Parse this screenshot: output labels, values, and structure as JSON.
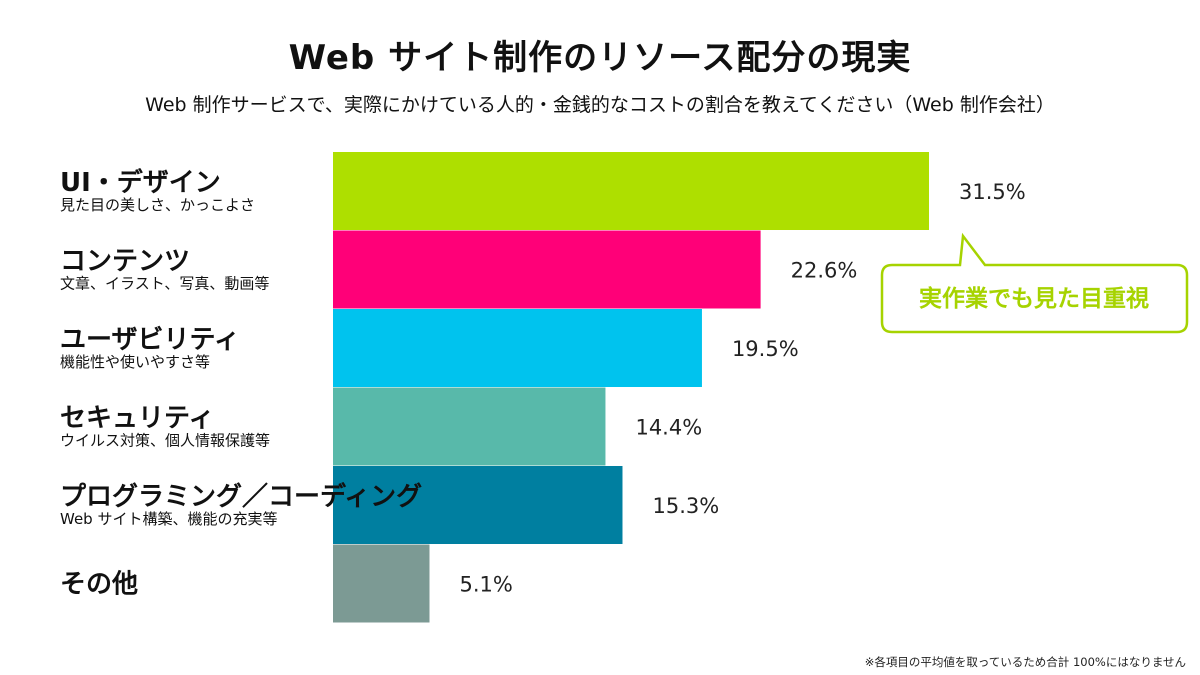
{
  "header": {
    "title": "Web サイト制作のリソース配分の現実",
    "subtitle": "Web 制作サービスで、実際にかけている人的・金銭的なコストの割合を教えてください（Web 制作会社）"
  },
  "callout": {
    "text": "実作業でも見た目重視"
  },
  "footnote": "※各項目の平均値を取っているため合計 100%にはなりません",
  "chart_data": {
    "type": "bar",
    "orientation": "horizontal",
    "title": "Web サイト制作のリソース配分の現実",
    "subtitle": "Web 制作サービスで、実際にかけている人的・金銭的なコストの割合を教えてください（Web 制作会社）",
    "categories": [
      {
        "name": "UI・デザイン",
        "description": "見た目の美しさ、かっこよさ",
        "value": 31.5,
        "label": "31.5%",
        "color": "#aedf00"
      },
      {
        "name": "コンテンツ",
        "description": "文章、イラスト、写真、動画等",
        "value": 22.6,
        "label": "22.6%",
        "color": "#ff0078"
      },
      {
        "name": "ユーザビリティ",
        "description": "機能性や使いやすさ等",
        "value": 19.5,
        "label": "19.5%",
        "color": "#00c3ee"
      },
      {
        "name": "セキュリティ",
        "description": "ウイルス対策、個人情報保護等",
        "value": 14.4,
        "label": "14.4%",
        "color": "#58b9aa"
      },
      {
        "name": "プログラミング／コーディング",
        "description": "Web サイト構築、機能の充実等",
        "value": 15.3,
        "label": "15.3%",
        "color": "#007fa0"
      },
      {
        "name": "その他",
        "description": "",
        "value": 5.1,
        "label": "5.1%",
        "color": "#7c9a94"
      }
    ],
    "xlim": [
      0,
      31.5
    ],
    "unit": "%",
    "grid": false,
    "legend": "none"
  }
}
